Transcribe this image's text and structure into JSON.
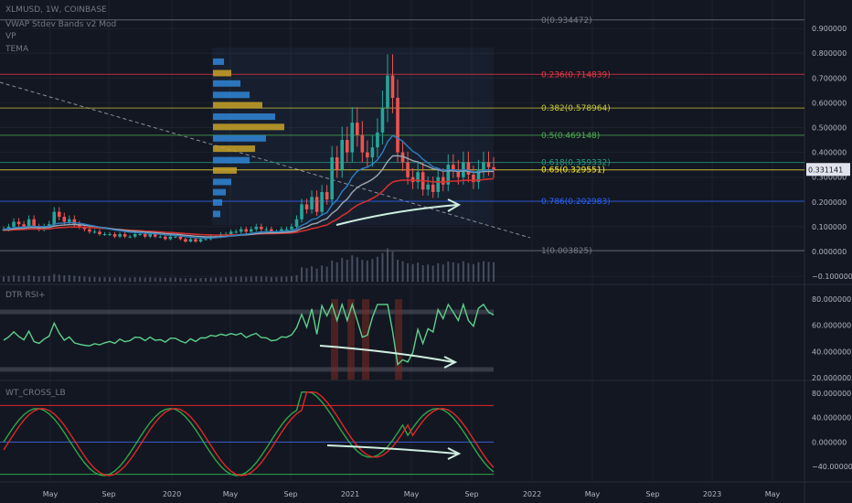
{
  "header": {
    "symbol": "XLMUSD, 1W, COINBASE",
    "ind1": "VWAP Stdev Bands v2 Mod",
    "ind2": "VP",
    "ind3": "TEMA"
  },
  "colors": {
    "background": "#131722",
    "up": "#26a69a",
    "down": "#ef5350",
    "ema_blue": "#2f7fc1",
    "ema_grey": "#9aa7b0",
    "ema_red": "#d0302f",
    "rsi_up": "#5cd18b",
    "rsi_down": "#e25a3c",
    "wt_green": "#2ba84a",
    "wt_red": "#e02727",
    "vp_blue": "#2f86d6",
    "vp_gold": "#c9a227",
    "annot": "#cfeee0"
  },
  "chart_data": [
    {
      "type": "candlestick",
      "title": "XLMUSD, 1W, COINBASE",
      "x_ticks": [
        "May",
        "Sep",
        "2020",
        "May",
        "Sep",
        "2021",
        "May",
        "Sep",
        "2022",
        "May",
        "Sep",
        "2023",
        "May"
      ],
      "y_ticks": [
        "0.900000",
        "0.800000",
        "0.700000",
        "0.600000",
        "0.500000",
        "0.400000",
        "0.300000",
        "0.200000",
        "0.100000",
        "0.000000",
        "−0.100000"
      ],
      "ylim": [
        -0.14,
        1.0
      ],
      "fib_levels": [
        {
          "label": "0(0.934472)",
          "value": 0.934472,
          "color": "#787b86"
        },
        {
          "label": "0.236(0.714839)",
          "value": 0.714839,
          "color": "#f23645"
        },
        {
          "label": "0.382(0.578964)",
          "value": 0.578964,
          "color": "#c9c93a"
        },
        {
          "label": "0.5(0.469148)",
          "value": 0.469148,
          "color": "#4caf50"
        },
        {
          "label": "0.618(0.359332)",
          "value": 0.359332,
          "color": "#2c9c82"
        },
        {
          "label": "0.65(0.329551)",
          "value": 0.329551,
          "color": "#ffeb3b"
        },
        {
          "label": "0.786(0.202983)",
          "value": 0.202983,
          "color": "#2962ff"
        },
        {
          "label": "1(0.003825)",
          "value": 0.003825,
          "color": "#787b86"
        }
      ],
      "price_badge": "0.331141",
      "price_series_note": "weekly close approximations",
      "price": [
        0.09,
        0.1,
        0.12,
        0.11,
        0.1,
        0.13,
        0.1,
        0.09,
        0.1,
        0.11,
        0.16,
        0.14,
        0.12,
        0.13,
        0.11,
        0.1,
        0.09,
        0.08,
        0.08,
        0.07,
        0.07,
        0.07,
        0.06,
        0.07,
        0.06,
        0.06,
        0.07,
        0.07,
        0.06,
        0.07,
        0.06,
        0.06,
        0.05,
        0.06,
        0.06,
        0.05,
        0.04,
        0.05,
        0.04,
        0.05,
        0.05,
        0.06,
        0.06,
        0.07,
        0.07,
        0.08,
        0.08,
        0.09,
        0.08,
        0.09,
        0.1,
        0.09,
        0.09,
        0.08,
        0.08,
        0.09,
        0.09,
        0.1,
        0.13,
        0.19,
        0.17,
        0.22,
        0.16,
        0.24,
        0.21,
        0.38,
        0.33,
        0.45,
        0.4,
        0.52,
        0.47,
        0.4,
        0.38,
        0.42,
        0.48,
        0.58,
        0.71,
        0.62,
        0.4,
        0.36,
        0.3,
        0.28,
        0.32,
        0.25,
        0.27,
        0.24,
        0.3,
        0.27,
        0.35,
        0.33,
        0.3,
        0.36,
        0.31,
        0.28,
        0.33,
        0.36,
        0.34,
        0.33
      ],
      "rsi_ticks": [
        "80.000000",
        "60.000000",
        "40.000000",
        "20.000000"
      ],
      "wt_ticks": [
        "80.000000",
        "40.000000",
        "0.000000",
        "−40.000000"
      ]
    }
  ],
  "panels": {
    "rsi_title": "DTR RSI+",
    "wt_title": "WT_CROSS_LB"
  }
}
